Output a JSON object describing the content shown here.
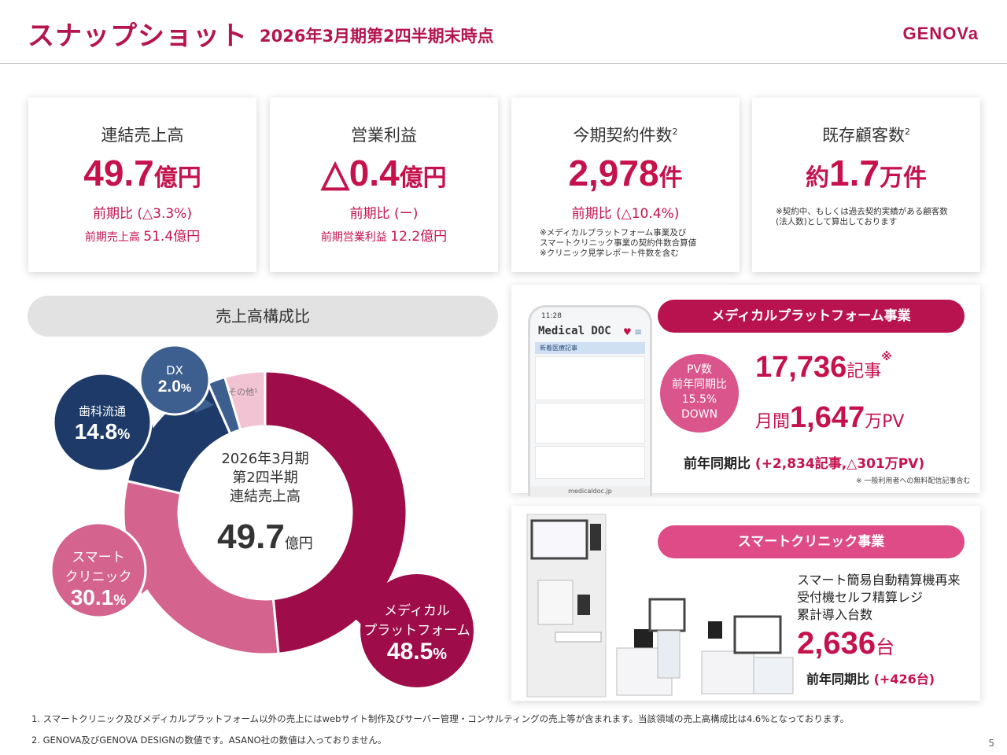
{
  "header": {
    "title": "スナップショット",
    "subtitle": "2026年3月期第2四半期末時点",
    "logo": "GENOVa"
  },
  "kpis": [
    {
      "label": "連結売上高",
      "sup": "",
      "value": "49.7",
      "unit": "億円",
      "prefix": "",
      "cmp": "前期比 (△3.3%)",
      "cmp2_label": "前期売上高",
      "cmp2_value": "51.4億円",
      "note": ""
    },
    {
      "label": "営業利益",
      "sup": "",
      "value": "△0.4",
      "unit": "億円",
      "prefix": "",
      "cmp": "前期比 (ー)",
      "cmp2_label": "前期営業利益",
      "cmp2_value": "12.2億円",
      "note": ""
    },
    {
      "label": "今期契約件数",
      "sup": "2",
      "value": "2,978",
      "unit": "件",
      "prefix": "",
      "cmp": "前期比 (△10.4%)",
      "cmp2_label": "",
      "cmp2_value": "",
      "note": "※メディカルプラットフォーム事業及び\nスマートクリニック事業の契約件数合算値\n※クリニック見学レポート件数を含む"
    },
    {
      "label": "既存顧客数",
      "sup": "2",
      "value": "1.7",
      "unit": "万件",
      "prefix": "約",
      "cmp": "",
      "cmp2_label": "",
      "cmp2_value": "",
      "note": "※契約中、もしくは過去契約実績がある顧客数\n(法人数)として算出しております"
    }
  ],
  "composition": {
    "header": "売上高構成比",
    "center_line1": "2026年3月期",
    "center_line2": "第2四半期",
    "center_line3": "連結売上高",
    "center_value": "49.7",
    "center_unit": "億円",
    "other_label": "その他¹"
  },
  "chart_data": {
    "type": "pie",
    "categories": [
      "メディカルプラットフォーム",
      "スマートクリニック",
      "歯科流通",
      "DX",
      "その他"
    ],
    "values": [
      48.5,
      30.1,
      14.8,
      2.0,
      4.6
    ],
    "colors": [
      "#9e0c4a",
      "#d4638d",
      "#1d3a68",
      "#3c5f8f",
      "#f2c3d3"
    ]
  },
  "bubbles": {
    "medical_l1": "メディカル",
    "medical_l2": "プラットフォーム",
    "medical_pct": "48.5",
    "smart_l1": "スマート",
    "smart_l2": "クリニック",
    "smart_pct": "30.1",
    "dental_l1": "歯科流通",
    "dental_pct": "14.8",
    "dx_l1": "DX",
    "dx_pct": "2.0",
    "pct_sign": "%"
  },
  "medical_panel": {
    "header": "メディカルプラットフォーム事業",
    "pv_l1": "PV数",
    "pv_l2": "前年同期比",
    "pv_l3": "15.5%",
    "pv_l4": "DOWN",
    "articles_value": "17,736",
    "articles_unit": "記事",
    "articles_mark": "※",
    "monthly_prefix": "月間",
    "monthly_value": "1,647",
    "monthly_unit": "万PV",
    "yoy_label": "前年同期比",
    "yoy_value": "(+2,834記事,△301万PV)",
    "note": "※ 一般利用者への無料配信記事含む",
    "phone_time": "11:28",
    "phone_brand": "Medical DOC",
    "phone_section": "新着医療記事",
    "phone_url": "medicaldoc.jp"
  },
  "smart_panel": {
    "header": "スマートクリニック事業",
    "desc_l1": "スマート簡易自動精算機再来",
    "desc_l2": "受付機セルフ精算レジ",
    "desc_l3": "累計導入台数",
    "value": "2,636",
    "unit": "台",
    "yoy_label": "前年同期比",
    "yoy_value": "(+426台)"
  },
  "footnotes": {
    "n1": "1. スマートクリニック及びメディカルプラットフォーム以外の売上にはwebサイト制作及びサーバー管理・コンサルティングの売上等が含まれます。当該領域の売上高構成比は4.6%となっております。",
    "n2": "2. GENOVA及びGENOVA DESIGNの数値です。ASANO社の数値は入っておりません。",
    "page": "5"
  }
}
